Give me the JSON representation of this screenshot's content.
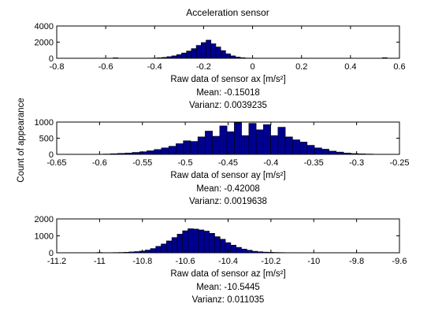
{
  "figure": {
    "title": "Acceleration sensor",
    "shared_ylabel": "Count of appearance"
  },
  "colors": {
    "bar_fill": "#00008f",
    "bar_edge": "#000000",
    "axes": "#000000",
    "background": "#ffffff"
  },
  "chart_data": [
    {
      "type": "bar",
      "subtype": "histogram",
      "title": "Acceleration sensor",
      "xlabel": "Raw data of sensor ax [m/s²]",
      "ylabel": "Count of appearance",
      "xlim": [
        -0.8,
        0.6
      ],
      "ylim": [
        0,
        4000
      ],
      "xticks": [
        -0.8,
        -0.6,
        -0.4,
        -0.2,
        0,
        0.2,
        0.4,
        0.6
      ],
      "xtick_labels": [
        "-0.8",
        "-0.6",
        "-0.4",
        "-0.2",
        "0",
        "0.2",
        "0.4",
        "0.6"
      ],
      "yticks": [
        0,
        2000,
        4000
      ],
      "ytick_labels": [
        "0",
        "2000",
        "4000"
      ],
      "bin_width": 0.02,
      "bins": [
        -0.6,
        -0.58,
        -0.56,
        -0.54,
        -0.52,
        -0.5,
        -0.48,
        -0.46,
        -0.44,
        -0.42,
        -0.4,
        -0.38,
        -0.36,
        -0.34,
        -0.32,
        -0.3,
        -0.28,
        -0.26,
        -0.24,
        -0.22,
        -0.2,
        -0.18,
        -0.16,
        -0.14,
        -0.12,
        -0.1,
        -0.08,
        -0.06,
        -0.04,
        -0.02,
        0,
        0.02,
        0.04,
        0.06,
        0.08,
        0.1,
        0.12,
        0.14,
        0.16,
        0.18,
        0.2,
        0.22,
        0.24,
        0.26,
        0.28,
        0.3,
        0.32,
        0.34,
        0.36,
        0.38,
        0.4,
        0.42,
        0.44,
        0.46,
        0.48,
        0.5,
        0.52,
        0.54,
        0.56
      ],
      "values": [
        0,
        0,
        60,
        0,
        0,
        0,
        0,
        0,
        0,
        10,
        30,
        60,
        110,
        200,
        300,
        450,
        650,
        900,
        1200,
        1600,
        1950,
        2250,
        1800,
        1400,
        950,
        550,
        300,
        150,
        70,
        30,
        15,
        10,
        5,
        0,
        0,
        0,
        5,
        0,
        0,
        0,
        0,
        0,
        0,
        0,
        0,
        0,
        0,
        0,
        0,
        0,
        0,
        0,
        0,
        0,
        0,
        0,
        0,
        80,
        0
      ],
      "stats": {
        "mean_label": "Mean: -0.15018",
        "variance_label": "Varianz: 0.0039235"
      }
    },
    {
      "type": "bar",
      "subtype": "histogram",
      "title": "",
      "xlabel": "Raw data of sensor ay [m/s²]",
      "ylabel": "Count of appearance",
      "xlim": [
        -0.65,
        -0.25
      ],
      "ylim": [
        0,
        1000
      ],
      "xticks": [
        -0.65,
        -0.6,
        -0.55,
        -0.5,
        -0.45,
        -0.4,
        -0.35,
        -0.3,
        -0.25
      ],
      "xtick_labels": [
        "-0.65",
        "-0.6",
        "-0.55",
        "-0.5",
        "-0.45",
        "-0.4",
        "-0.35",
        "-0.3",
        "-0.25"
      ],
      "yticks": [
        0,
        500,
        1000
      ],
      "ytick_labels": [
        "0",
        "500",
        "1000"
      ],
      "bin_width": 0.0085,
      "bins": [
        -0.6,
        -0.5915,
        -0.583,
        -0.5745,
        -0.566,
        -0.5575,
        -0.549,
        -0.5405,
        -0.532,
        -0.5235,
        -0.515,
        -0.5065,
        -0.498,
        -0.4895,
        -0.481,
        -0.4725,
        -0.464,
        -0.4555,
        -0.447,
        -0.4385,
        -0.43,
        -0.4215,
        -0.413,
        -0.4045,
        -0.396,
        -0.3875,
        -0.379,
        -0.3705,
        -0.362,
        -0.3535,
        -0.345,
        -0.3365,
        -0.328,
        -0.3195,
        -0.311,
        -0.3025,
        -0.294,
        -0.2855,
        -0.277,
        -0.2685
      ],
      "values": [
        5,
        10,
        20,
        30,
        40,
        60,
        80,
        110,
        150,
        200,
        250,
        330,
        420,
        400,
        540,
        720,
        560,
        880,
        700,
        980,
        580,
        960,
        760,
        920,
        580,
        840,
        540,
        450,
        380,
        280,
        200,
        160,
        100,
        70,
        40,
        25,
        15,
        10,
        5,
        2
      ],
      "stats": {
        "mean_label": "Mean: -0.42008",
        "variance_label": "Varianz: 0.0019638"
      }
    },
    {
      "type": "bar",
      "subtype": "histogram",
      "title": "",
      "xlabel": "Raw data of sensor az [m/s²]",
      "ylabel": "Count of appearance",
      "xlim": [
        -11.2,
        -9.6
      ],
      "ylim": [
        0,
        2000
      ],
      "xticks": [
        -11.2,
        -11,
        -10.8,
        -10.6,
        -10.4,
        -10.2,
        -10,
        -9.8,
        -9.6
      ],
      "xtick_labels": [
        "-11.2",
        "-11",
        "-10.8",
        "-10.6",
        "-10.4",
        "-10.2",
        "-10",
        "-9.8",
        "-9.6"
      ],
      "yticks": [
        0,
        1000,
        2000
      ],
      "ytick_labels": [
        "0",
        "1000",
        "2000"
      ],
      "bin_width": 0.025,
      "bins": [
        -11.0,
        -10.975,
        -10.95,
        -10.925,
        -10.9,
        -10.875,
        -10.85,
        -10.825,
        -10.8,
        -10.775,
        -10.75,
        -10.725,
        -10.7,
        -10.675,
        -10.65,
        -10.625,
        -10.6,
        -10.575,
        -10.55,
        -10.525,
        -10.5,
        -10.475,
        -10.45,
        -10.425,
        -10.4,
        -10.375,
        -10.35,
        -10.325,
        -10.3,
        -10.275,
        -10.25,
        -10.225,
        -10.2,
        -10.175,
        -10.15,
        -10.125,
        -10.1,
        -10.075,
        -10.05,
        -10.025,
        -10.0,
        -9.975,
        -9.95,
        -9.925,
        -9.9,
        -9.875,
        -9.85,
        -9.825,
        -9.8,
        -9.775,
        -9.75,
        -9.725,
        -9.7
      ],
      "values": [
        20,
        10,
        10,
        15,
        20,
        30,
        50,
        70,
        100,
        160,
        250,
        380,
        520,
        700,
        900,
        1100,
        1300,
        1420,
        1400,
        1350,
        1280,
        1150,
        950,
        800,
        600,
        450,
        320,
        220,
        150,
        90,
        60,
        40,
        30,
        20,
        15,
        10,
        10,
        10,
        5,
        5,
        5,
        5,
        5,
        5,
        5,
        5,
        5,
        5,
        5,
        5,
        5,
        5,
        5
      ],
      "stats": {
        "mean_label": "Mean: -10.5445",
        "variance_label": "Varianz: 0.011035"
      }
    }
  ]
}
